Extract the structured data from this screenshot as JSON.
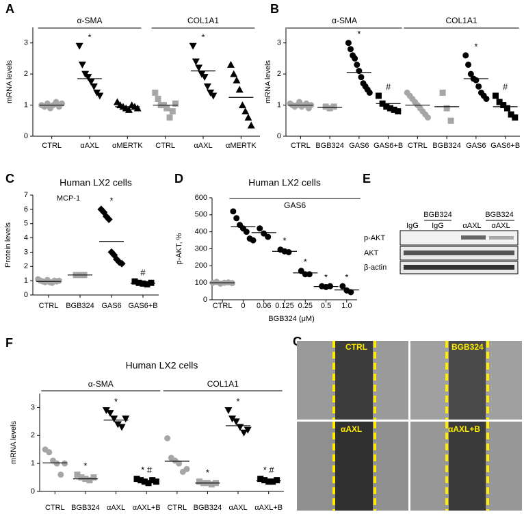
{
  "chart_data": [
    {
      "type": "dot",
      "panel": "A",
      "ylabel": "mRNA levels",
      "ylim": [
        0,
        3.5
      ],
      "yticks": [
        0,
        1,
        2,
        3
      ],
      "groups": [
        {
          "name": "α-SMA",
          "series": [
            {
              "name": "CTRL",
              "color": "#a6a6a6",
              "marker": "circle",
              "values": [
                1.0,
                0.95,
                1.05,
                0.9,
                1.0,
                1.1,
                0.95,
                1.05
              ],
              "center": 1.0
            },
            {
              "name": "αAXL",
              "color": "#000000",
              "marker": "triangle-down",
              "values": [
                2.9,
                2.3,
                2.0,
                1.9,
                1.75,
                1.6,
                1.4,
                1.3
              ],
              "center": 1.85,
              "annotation": "*"
            },
            {
              "name": "αMERTK",
              "color": "#000000",
              "marker": "triangle",
              "values": [
                1.1,
                1.0,
                0.95,
                0.9,
                0.85,
                1.0,
                0.95,
                0.9
              ],
              "center": 0.95
            }
          ]
        },
        {
          "name": "COL1A1",
          "series": [
            {
              "name": "CTRL",
              "color": "#a6a6a6",
              "marker": "square",
              "values": [
                1.4,
                1.2,
                1.0,
                1.0,
                0.9,
                0.6,
                0.8,
                1.05
              ],
              "center": 1.0
            },
            {
              "name": "αAXL",
              "color": "#000000",
              "marker": "triangle-down",
              "values": [
                2.9,
                2.4,
                2.2,
                2.0,
                1.9,
                1.6,
                1.4,
                1.3
              ],
              "center": 2.1,
              "annotation": "*"
            },
            {
              "name": "αMERTK",
              "color": "#000000",
              "marker": "triangle",
              "values": [
                2.3,
                2.0,
                1.8,
                1.5,
                1.0,
                0.8,
                0.6,
                0.35
              ],
              "center": 1.25
            }
          ]
        }
      ]
    },
    {
      "type": "dot",
      "panel": "B",
      "ylabel": "mRNA levels",
      "ylim": [
        0,
        3.5
      ],
      "yticks": [
        0,
        1,
        2,
        3
      ],
      "groups": [
        {
          "name": "α-SMA",
          "series": [
            {
              "name": "CTRL",
              "color": "#a6a6a6",
              "marker": "circle",
              "values": [
                1.05,
                1.0,
                0.95,
                1.0,
                1.1,
                0.95,
                1.0,
                1.05,
                0.9,
                1.0
              ],
              "center": 1.0
            },
            {
              "name": "BGB324",
              "color": "#a6a6a6",
              "marker": "square",
              "values": [
                0.95,
                0.9,
                0.95
              ],
              "center": 0.93
            },
            {
              "name": "GAS6",
              "color": "#000000",
              "marker": "circle",
              "values": [
                3.0,
                2.8,
                2.6,
                2.5,
                2.3,
                2.1,
                1.9,
                1.7,
                1.6,
                1.5,
                1.4
              ],
              "center": 2.05,
              "annotation": "*"
            },
            {
              "name": "GAS6+B",
              "color": "#000000",
              "marker": "square",
              "values": [
                1.3,
                1.05,
                0.95,
                0.9,
                0.85,
                0.8
              ],
              "center": 1.05,
              "annotation": "#"
            }
          ]
        },
        {
          "name": "COL1A1",
          "series": [
            {
              "name": "CTRL",
              "color": "#a6a6a6",
              "marker": "circle",
              "values": [
                1.4,
                1.3,
                1.2,
                1.1,
                1.0,
                0.9,
                0.8,
                0.7,
                0.6
              ],
              "center": 1.0
            },
            {
              "name": "BGB324",
              "color": "#a6a6a6",
              "marker": "square",
              "values": [
                1.4,
                0.9,
                0.5
              ],
              "center": 0.95
            },
            {
              "name": "GAS6",
              "color": "#000000",
              "marker": "circle",
              "values": [
                2.6,
                2.3,
                2.0,
                1.85,
                1.8,
                1.6,
                1.4,
                1.3,
                1.2
              ],
              "center": 1.85,
              "annotation": "*"
            },
            {
              "name": "GAS6+B",
              "color": "#000000",
              "marker": "square",
              "values": [
                1.3,
                1.1,
                1.0,
                0.9,
                0.7,
                0.6
              ],
              "center": 0.95,
              "annotation": "#"
            }
          ]
        }
      ]
    },
    {
      "type": "dot",
      "panel": "C",
      "title": "Human LX2 cells",
      "subtitle": "MCP-1",
      "ylabel": "Protein levels",
      "ylim": [
        0,
        7
      ],
      "yticks": [
        0,
        1,
        2,
        3,
        4,
        5,
        6,
        7
      ],
      "groups": [
        {
          "series": [
            {
              "name": "CTRL",
              "color": "#a6a6a6",
              "marker": "circle",
              "values": [
                1.1,
                1.0,
                0.95,
                0.9,
                1.05,
                0.9,
                0.85,
                1.0,
                0.95,
                1.0
              ],
              "center": 0.95
            },
            {
              "name": "BGB324",
              "color": "#a6a6a6",
              "marker": "square",
              "values": [
                1.4,
                1.4,
                1.4
              ],
              "center": 1.4
            },
            {
              "name": "GAS6",
              "color": "#000000",
              "marker": "diamond",
              "values": [
                6.0,
                5.8,
                5.5,
                5.3,
                3.0,
                2.8,
                2.5,
                2.3,
                2.2
              ],
              "center": 3.75,
              "annotation": "*"
            },
            {
              "name": "GAS6+B",
              "color": "#000000",
              "marker": "square",
              "values": [
                0.95,
                0.85,
                0.8,
                0.75,
                0.85
              ],
              "center": 0.82,
              "annotation": "#"
            }
          ]
        }
      ]
    },
    {
      "type": "dot",
      "panel": "D",
      "title": "Human LX2 cells",
      "ylabel": "p-AKT, %",
      "xlabel": "BGB324 (μM)",
      "ylim": [
        0,
        600
      ],
      "yticks": [
        0,
        100,
        200,
        300,
        400,
        500,
        600
      ],
      "groups": [
        {
          "series": [
            {
              "name": "CTRL",
              "color": "#a6a6a6",
              "marker": "circle",
              "values": [
                100,
                105,
                95,
                100,
                102,
                98
              ],
              "center": 100
            }
          ]
        },
        {
          "name": "GAS6",
          "series": [
            {
              "name": "0",
              "color": "#000000",
              "marker": "circle",
              "values": [
                520,
                480,
                440,
                420,
                400,
                360,
                350
              ],
              "center": 430
            },
            {
              "name": "0.06",
              "color": "#000000",
              "marker": "circle",
              "values": [
                420,
                390,
                370
              ],
              "center": 395
            },
            {
              "name": "0.125",
              "color": "#000000",
              "marker": "circle",
              "values": [
                295,
                285,
                280
              ],
              "center": 285,
              "annotation": "*"
            },
            {
              "name": "0.25",
              "color": "#000000",
              "marker": "circle",
              "values": [
                170,
                150,
                150
              ],
              "center": 158,
              "annotation": "*"
            },
            {
              "name": "0.5",
              "color": "#000000",
              "marker": "circle",
              "values": [
                80,
                75,
                80
              ],
              "center": 78,
              "annotation": "*"
            },
            {
              "name": "1.0",
              "color": "#000000",
              "marker": "circle",
              "values": [
                80,
                55,
                45
              ],
              "center": 58,
              "annotation": "*"
            }
          ]
        }
      ]
    },
    {
      "type": "dot",
      "panel": "F",
      "title": "Human LX2 cells",
      "ylabel": "mRNA levels",
      "ylim": [
        0,
        3.5
      ],
      "yticks": [
        0,
        1,
        2,
        3
      ],
      "groups": [
        {
          "name": "α-SMA",
          "series": [
            {
              "name": "CTRL",
              "color": "#a6a6a6",
              "marker": "circle",
              "values": [
                1.5,
                1.4,
                1.1,
                1.0,
                0.6,
                1.0
              ],
              "center": 1.02
            },
            {
              "name": "BGB324",
              "color": "#a6a6a6",
              "marker": "square",
              "values": [
                0.6,
                0.5,
                0.45,
                0.4,
                0.5
              ],
              "center": 0.45,
              "annotation": "*"
            },
            {
              "name": "αAXL",
              "color": "#000000",
              "marker": "triangle-down",
              "values": [
                2.9,
                2.8,
                2.6,
                2.4,
                2.3,
                2.6
              ],
              "center": 2.55,
              "annotation": "*"
            },
            {
              "name": "αAXL+B",
              "color": "#000000",
              "marker": "square",
              "values": [
                0.45,
                0.4,
                0.35,
                0.3,
                0.4,
                0.35
              ],
              "center": 0.38,
              "annotation": "* #"
            }
          ]
        },
        {
          "name": "COL1A1",
          "series": [
            {
              "name": "CTRL",
              "color": "#a6a6a6",
              "marker": "circle",
              "values": [
                1.9,
                1.2,
                1.1,
                1.0,
                0.7,
                0.8
              ],
              "center": 1.08
            },
            {
              "name": "BGB324",
              "color": "#a6a6a6",
              "marker": "square",
              "values": [
                0.35,
                0.3,
                0.3,
                0.25,
                0.3
              ],
              "center": 0.3,
              "annotation": "*"
            },
            {
              "name": "αAXL",
              "color": "#000000",
              "marker": "triangle-down",
              "values": [
                2.9,
                2.6,
                2.5,
                2.3,
                2.1,
                2.2
              ],
              "center": 2.35,
              "annotation": "*"
            },
            {
              "name": "αAXL+B",
              "color": "#000000",
              "marker": "square",
              "values": [
                0.45,
                0.4,
                0.35,
                0.35,
                0.4
              ],
              "center": 0.38,
              "annotation": "* #"
            }
          ]
        }
      ]
    }
  ],
  "blot": {
    "panel": "E",
    "treatments": [
      "BGB324",
      "BGB324"
    ],
    "lanes": [
      "IgG",
      "IgG",
      "αAXL",
      "αAXL"
    ],
    "rows": [
      "p-AKT",
      "AKT",
      "β-actin"
    ]
  },
  "micrographs": {
    "panel": "G",
    "labels": [
      "CTRL",
      "BGB324",
      "αAXL",
      "αAXL+B"
    ]
  }
}
